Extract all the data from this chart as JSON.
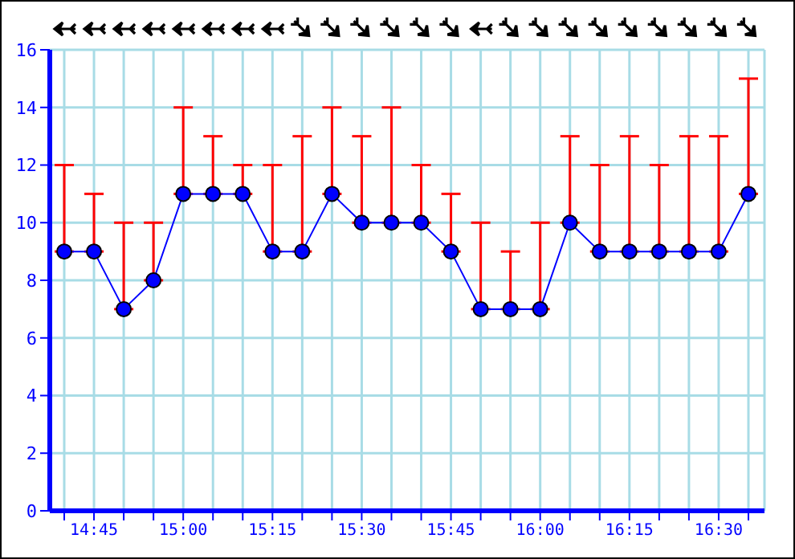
{
  "chart_data": {
    "type": "line",
    "categories": [
      null,
      "14:45",
      null,
      null,
      "15:00",
      null,
      null,
      "15:15",
      null,
      null,
      "15:30",
      null,
      null,
      "15:45",
      null,
      null,
      "16:00",
      null,
      null,
      "16:15",
      null,
      null,
      "16:30",
      null
    ],
    "series": [
      {
        "color": "#0000ff",
        "values": [
          9,
          9,
          7,
          8,
          11,
          11,
          11,
          9,
          9,
          11,
          10,
          10,
          10,
          9,
          7,
          7,
          7,
          10,
          9,
          9,
          9,
          9,
          9,
          11
        ],
        "errors": [
          [
            9,
            12
          ],
          [
            9,
            11
          ],
          [
            7,
            10
          ],
          [
            8,
            10
          ],
          [
            11,
            14
          ],
          [
            11,
            13
          ],
          [
            11,
            12
          ],
          [
            9,
            12
          ],
          [
            9,
            13
          ],
          [
            11,
            14
          ],
          [
            10,
            13
          ],
          [
            10,
            14
          ],
          [
            10,
            12
          ],
          [
            9,
            11
          ],
          [
            7,
            10
          ],
          [
            7,
            9
          ],
          [
            7,
            10
          ],
          [
            10,
            13
          ],
          [
            9,
            12
          ],
          [
            9,
            13
          ],
          [
            9,
            12
          ],
          [
            9,
            13
          ],
          [
            9,
            13
          ],
          [
            11,
            15
          ]
        ]
      }
    ],
    "ylim": [
      0,
      16
    ],
    "yticks": [
      0,
      2,
      4,
      6,
      8,
      10,
      12,
      14,
      16
    ],
    "grid": true,
    "marker": "circle",
    "line_style": "solid"
  }
}
